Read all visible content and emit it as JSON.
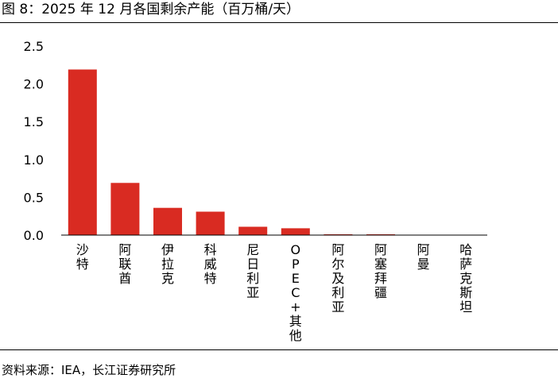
{
  "title": "图 8：2025 年 12 月各国剩余产能（百万桶/天）",
  "source": "资料来源：IEA，长江证券研究所",
  "colors": {
    "bar": "#d92b22",
    "axis": "#000000"
  },
  "chart_data": {
    "type": "bar",
    "title": "",
    "xlabel": "",
    "ylabel": "",
    "categories": [
      "沙特",
      "阿联酋",
      "伊拉克",
      "科威特",
      "尼日利亚",
      "OPEC+其他",
      "阿尔及利亚",
      "阿塞拜疆",
      "阿曼",
      "哈萨克斯坦"
    ],
    "values": [
      2.19,
      0.69,
      0.36,
      0.31,
      0.11,
      0.09,
      0.01,
      0.01,
      0.005,
      0.0
    ],
    "ylim": [
      0,
      2.5
    ],
    "yticks": [
      "0.0",
      "0.5",
      "1.0",
      "1.5",
      "2.0",
      "2.5"
    ],
    "grid": false,
    "legend": "none"
  }
}
